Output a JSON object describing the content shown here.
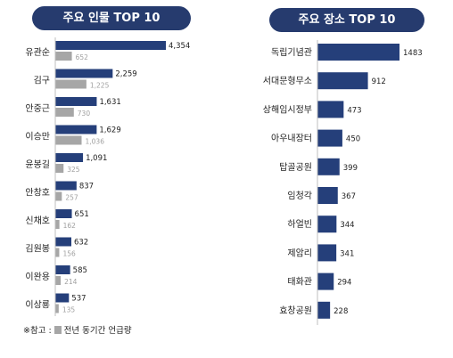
{
  "chart_data": [
    {
      "type": "bar",
      "title": "주요 인물 TOP 10",
      "categories": [
        "유관순",
        "김구",
        "안중근",
        "이승만",
        "윤봉길",
        "안창호",
        "신채호",
        "김원봉",
        "이완용",
        "이상룡"
      ],
      "series": [
        {
          "name": "",
          "values": [
            4354,
            2259,
            1631,
            1629,
            1091,
            837,
            651,
            632,
            585,
            537
          ],
          "color": "#253f7a"
        },
        {
          "name": "전년 동기간 언급량",
          "values": [
            652,
            1225,
            730,
            1036,
            325,
            257,
            162,
            156,
            214,
            135
          ],
          "color": "#a6a6a6"
        }
      ],
      "value_labels": [
        [
          "4,354",
          "2,259",
          "1,631",
          "1,629",
          "1,091",
          "837",
          "651",
          "632",
          "585",
          "537"
        ],
        [
          "652",
          "1,225",
          "730",
          "1,036",
          "325",
          "257",
          "162",
          "156",
          "214",
          "135"
        ]
      ],
      "orientation": "horizontal",
      "xlim": [
        0,
        4354
      ]
    },
    {
      "type": "bar",
      "title": "주요 장소 TOP 10",
      "categories": [
        "독립기념관",
        "서대문형무소",
        "상해임시정부",
        "아우내장터",
        "탑골공원",
        "임청각",
        "하얼빈",
        "제암리",
        "태화관",
        "효창공원"
      ],
      "series": [
        {
          "name": "",
          "values": [
            1483,
            912,
            473,
            450,
            399,
            367,
            344,
            341,
            294,
            228
          ],
          "color": "#253f7a"
        }
      ],
      "value_labels": [
        [
          "1483",
          "912",
          "473",
          "450",
          "399",
          "367",
          "344",
          "341",
          "294",
          "228"
        ]
      ],
      "orientation": "horizontal",
      "xlim": [
        0,
        1483
      ]
    }
  ],
  "legend_note": {
    "prefix": "※참고 :",
    "label": "전년 동기간 언급량"
  }
}
